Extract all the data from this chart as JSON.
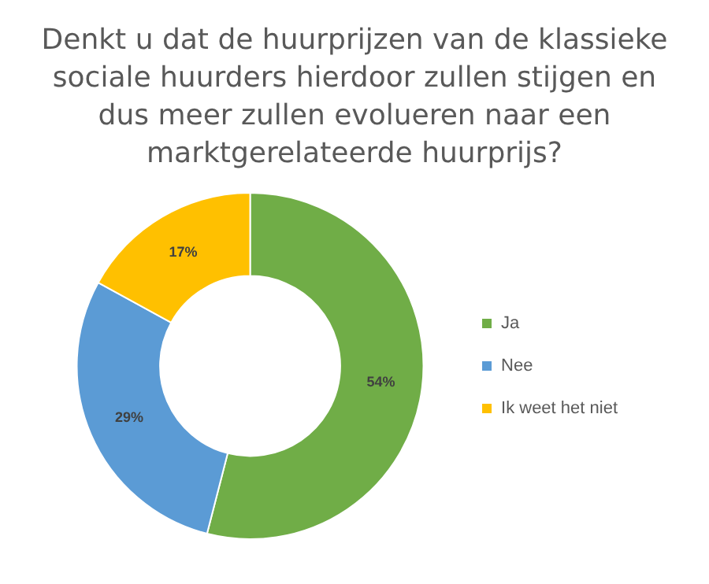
{
  "chart_data": {
    "type": "donut",
    "title": "Denkt u dat de huurprijzen van de klassieke sociale huurders hierdoor zullen stijgen en dus meer zullen evolueren naar een marktgerelateerde huurprijs?",
    "categories": [
      "Ja",
      "Nee",
      "Ik weet het niet"
    ],
    "values": [
      54,
      29,
      17
    ],
    "colors": [
      "#70ad47",
      "#5b9bd5",
      "#ffc000"
    ],
    "value_labels": [
      "54%",
      "29%",
      "17%"
    ],
    "legend": "right"
  }
}
